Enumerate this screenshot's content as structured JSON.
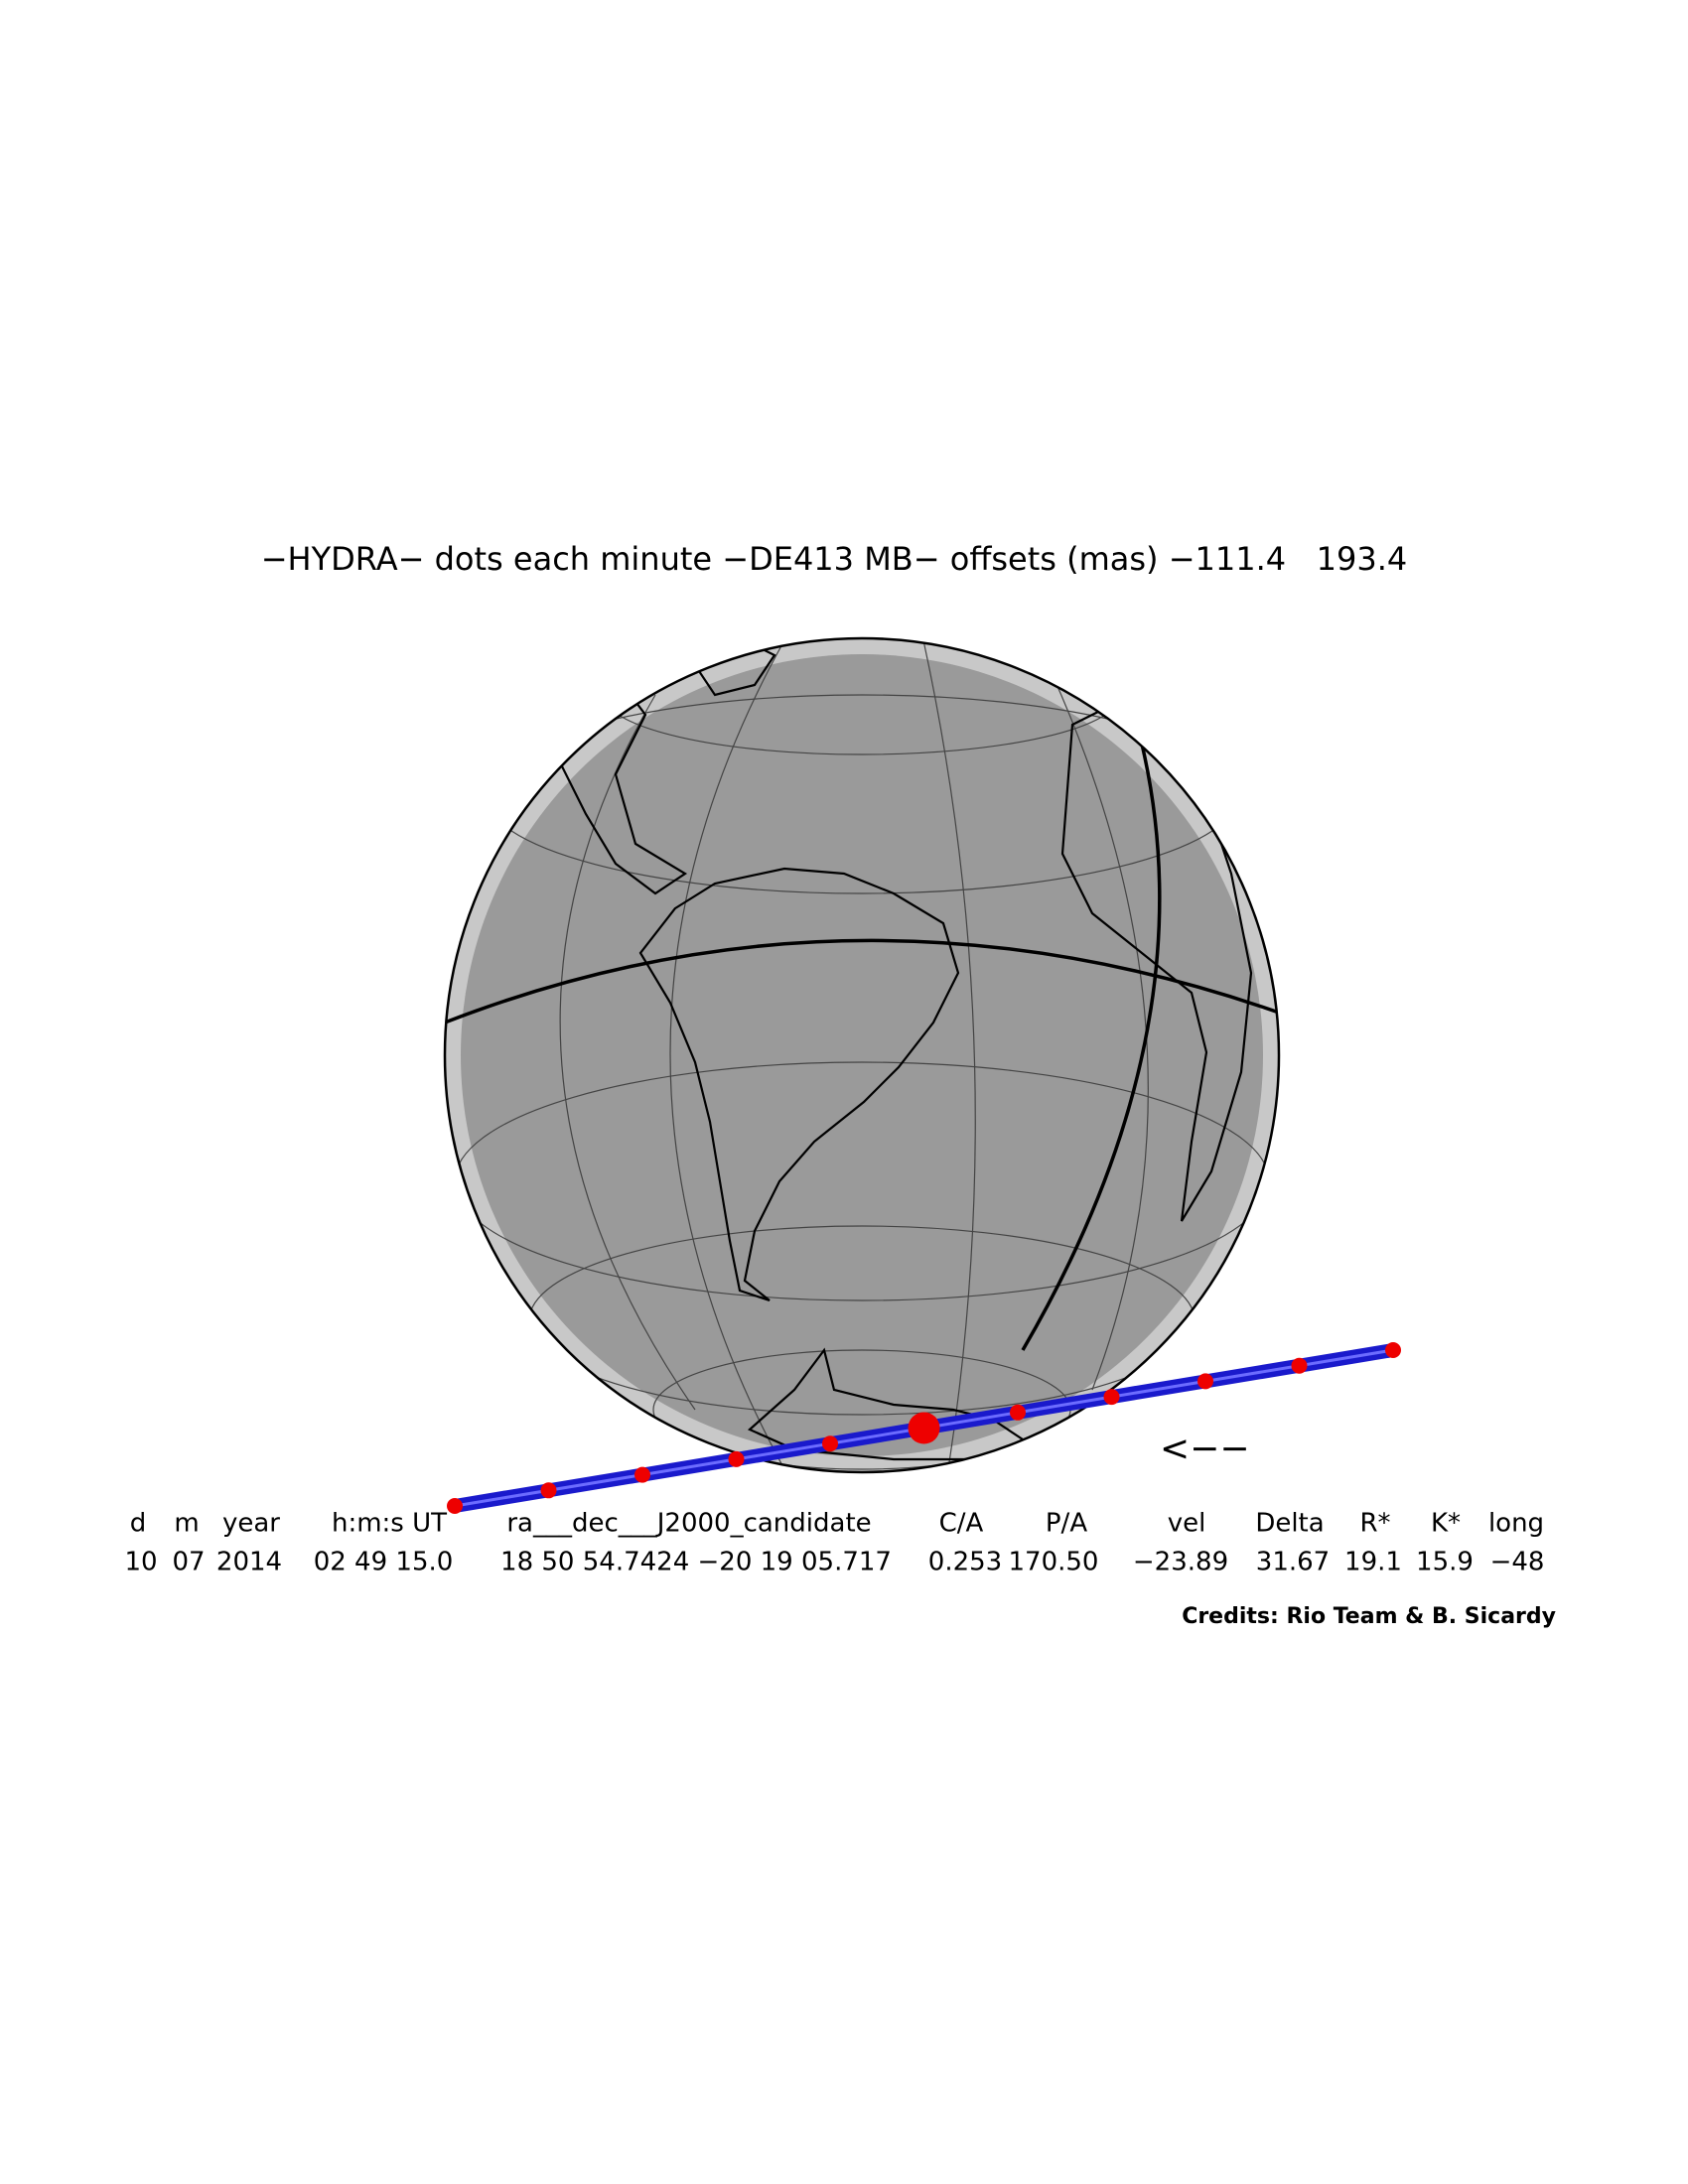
{
  "title": "−HYDRA− dots each minute −DE413 MB− offsets (mas) −111.4   193.4",
  "arrow": "<−−",
  "table": {
    "columns": [
      "d",
      "m",
      "year",
      "h:m:s UT",
      "ra___dec___J2000_candidate",
      "C/A",
      "P/A",
      "vel",
      "Delta",
      "R*",
      "K*",
      "long"
    ],
    "values": [
      "10",
      "07",
      "2014",
      "02 49 15.0",
      "18 50 54.7424 −20 19 05.717",
      "0.253",
      "170.50",
      "−23.89",
      "31.67",
      "19.1",
      "15.9",
      "−48"
    ]
  },
  "credits": "Credits: Rio Team & B. Sicardy"
}
